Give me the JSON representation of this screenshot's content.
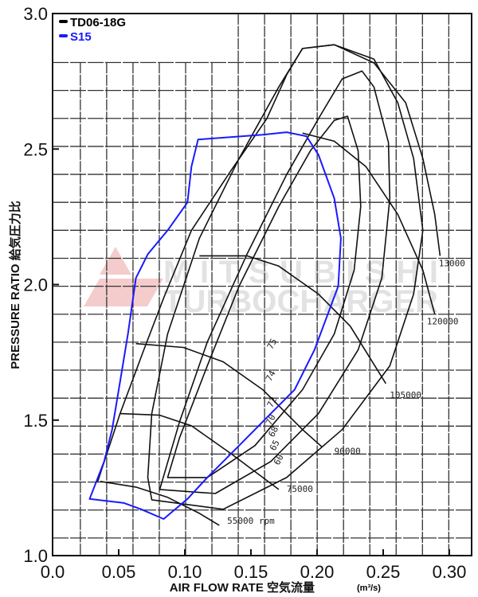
{
  "chart_data": {
    "type": "line",
    "title": "",
    "xlabel": "AIR FLOW RATE  空気流量",
    "xlabel_unit": "(m³/s)",
    "ylabel": "PRESSURE RATIO 給気圧力比",
    "xlim": [
      0.0,
      0.315
    ],
    "ylim": [
      1.0,
      3.0
    ],
    "x_ticks": [
      "0.0",
      "0.05",
      "0.10",
      "0.15",
      "0.20",
      "0.25",
      "0.30"
    ],
    "x_tick_values": [
      0.0,
      0.05,
      0.1,
      0.15,
      0.2,
      0.25,
      0.3
    ],
    "y_ticks": [
      "1.0",
      "1.5",
      "2.0",
      "2.5",
      "3.0"
    ],
    "y_tick_values": [
      1.0,
      1.5,
      2.0,
      2.5,
      3.0
    ],
    "grid": true,
    "legend_position": "top-left",
    "legend": [
      {
        "name": "TD06-18G",
        "color": "#000000"
      },
      {
        "name": "S15",
        "color": "#1a1aff"
      }
    ],
    "watermark": [
      "MITSUBISHI",
      "TURBOCHARGER"
    ],
    "series": [
      {
        "name": "S15",
        "color": "#1a1aff",
        "closed": true,
        "points": [
          [
            0.028,
            1.209
          ],
          [
            0.054,
            1.194
          ],
          [
            0.067,
            1.171
          ],
          [
            0.084,
            1.135
          ],
          [
            0.102,
            1.209
          ],
          [
            0.117,
            1.288
          ],
          [
            0.141,
            1.406
          ],
          [
            0.165,
            1.524
          ],
          [
            0.183,
            1.612
          ],
          [
            0.198,
            1.759
          ],
          [
            0.207,
            1.876
          ],
          [
            0.216,
            1.994
          ],
          [
            0.218,
            2.171
          ],
          [
            0.213,
            2.318
          ],
          [
            0.201,
            2.479
          ],
          [
            0.192,
            2.547
          ],
          [
            0.177,
            2.562
          ],
          [
            0.159,
            2.553
          ],
          [
            0.11,
            2.535
          ],
          [
            0.105,
            2.435
          ],
          [
            0.102,
            2.303
          ],
          [
            0.087,
            2.2
          ],
          [
            0.072,
            2.112
          ],
          [
            0.063,
            2.024
          ],
          [
            0.057,
            1.818
          ],
          [
            0.051,
            1.641
          ],
          [
            0.045,
            1.465
          ],
          [
            0.039,
            1.347
          ]
        ]
      }
    ],
    "td06_map": {
      "surge_line": [
        [
          0.034,
          1.271
        ],
        [
          0.051,
          1.524
        ],
        [
          0.069,
          1.759
        ],
        [
          0.084,
          1.95
        ],
        [
          0.105,
          2.2
        ],
        [
          0.135,
          2.421
        ],
        [
          0.162,
          2.612
        ],
        [
          0.177,
          2.774
        ],
        [
          0.189,
          2.871
        ],
        [
          0.213,
          2.885
        ]
      ],
      "choke_line": [
        [
          0.213,
          2.885
        ],
        [
          0.243,
          2.818
        ],
        [
          0.267,
          2.671
        ],
        [
          0.28,
          2.465
        ],
        [
          0.289,
          2.259
        ],
        [
          0.293,
          2.106
        ]
      ],
      "speed_lines": [
        {
          "label": "55000 rpm",
          "label_at": [
            0.132,
            1.118
          ],
          "points": [
            [
              0.036,
              1.274
            ],
            [
              0.063,
              1.253
            ],
            [
              0.087,
              1.215
            ],
            [
              0.111,
              1.156
            ],
            [
              0.126,
              1.112
            ]
          ]
        },
        {
          "label": "75000",
          "label_at": [
            0.177,
            1.235
          ],
          "points": [
            [
              0.051,
              1.524
            ],
            [
              0.081,
              1.518
            ],
            [
              0.105,
              1.479
            ],
            [
              0.135,
              1.376
            ],
            [
              0.159,
              1.288
            ],
            [
              0.171,
              1.244
            ]
          ]
        },
        {
          "label": "90000",
          "label_at": [
            0.213,
            1.374
          ],
          "points": [
            [
              0.063,
              1.782
            ],
            [
              0.099,
              1.768
            ],
            [
              0.129,
              1.715
            ],
            [
              0.159,
              1.612
            ],
            [
              0.189,
              1.465
            ],
            [
              0.204,
              1.4
            ]
          ]
        },
        {
          "label": "105000",
          "label_at": [
            0.255,
            1.582
          ],
          "points": [
            [
              0.111,
              2.106
            ],
            [
              0.147,
              2.106
            ],
            [
              0.171,
              2.068
            ],
            [
              0.201,
              1.965
            ],
            [
              0.225,
              1.847
            ],
            [
              0.252,
              1.635
            ]
          ]
        },
        {
          "label": "120000",
          "label_at": [
            0.283,
            1.853
          ],
          "points": [
            [
              0.189,
              2.559
            ],
            [
              0.213,
              2.529
            ],
            [
              0.237,
              2.435
            ],
            [
              0.261,
              2.259
            ],
            [
              0.28,
              2.053
            ],
            [
              0.289,
              1.891
            ]
          ]
        },
        {
          "label": "13000",
          "label_at": [
            0.292,
            2.068
          ],
          "points": []
        }
      ],
      "efficiency_islands": [
        [
          [
            0.087,
            1.288
          ],
          [
            0.117,
            1.288
          ],
          [
            0.153,
            1.406
          ],
          [
            0.189,
            1.612
          ],
          [
            0.213,
            1.818
          ],
          [
            0.228,
            2.053
          ],
          [
            0.233,
            2.288
          ],
          [
            0.231,
            2.494
          ],
          [
            0.223,
            2.621
          ],
          [
            0.213,
            2.606
          ],
          [
            0.195,
            2.494
          ],
          [
            0.171,
            2.288
          ],
          [
            0.141,
            1.994
          ],
          [
            0.117,
            1.7
          ],
          [
            0.096,
            1.435
          ],
          [
            0.087,
            1.288
          ]
        ],
        [
          [
            0.081,
            1.244
          ],
          [
            0.123,
            1.229
          ],
          [
            0.165,
            1.347
          ],
          [
            0.201,
            1.524
          ],
          [
            0.231,
            1.759
          ],
          [
            0.249,
            2.024
          ],
          [
            0.255,
            2.318
          ],
          [
            0.254,
            2.524
          ],
          [
            0.243,
            2.729
          ],
          [
            0.234,
            2.788
          ],
          [
            0.219,
            2.759
          ],
          [
            0.201,
            2.612
          ],
          [
            0.177,
            2.406
          ],
          [
            0.147,
            2.112
          ],
          [
            0.117,
            1.788
          ],
          [
            0.096,
            1.494
          ],
          [
            0.081,
            1.244
          ]
        ],
        [
          [
            0.075,
            1.206
          ],
          [
            0.129,
            1.171
          ],
          [
            0.177,
            1.288
          ],
          [
            0.219,
            1.465
          ],
          [
            0.255,
            1.7
          ],
          [
            0.273,
            1.965
          ],
          [
            0.28,
            2.2
          ],
          [
            0.273,
            2.465
          ],
          [
            0.261,
            2.671
          ],
          [
            0.243,
            2.832
          ],
          [
            0.213,
            2.885
          ],
          [
            0.189,
            2.871
          ],
          [
            0.171,
            2.729
          ],
          [
            0.141,
            2.465
          ],
          [
            0.111,
            2.171
          ],
          [
            0.087,
            1.818
          ],
          [
            0.075,
            1.524
          ],
          [
            0.072,
            1.288
          ],
          [
            0.075,
            1.206
          ]
        ]
      ],
      "efficiency_labels": [
        {
          "text": "75",
          "at": [
            0.166,
            1.759
          ]
        },
        {
          "text": "74",
          "at": [
            0.165,
            1.641
          ]
        },
        {
          "text": "72",
          "at": [
            0.166,
            1.544
          ]
        },
        {
          "text": "70",
          "at": [
            0.165,
            1.479
          ]
        },
        {
          "text": "68",
          "at": [
            0.167,
            1.435
          ]
        },
        {
          "text": "65",
          "at": [
            0.168,
            1.385
          ]
        },
        {
          "text": "60",
          "at": [
            0.171,
            1.332
          ]
        }
      ]
    }
  }
}
